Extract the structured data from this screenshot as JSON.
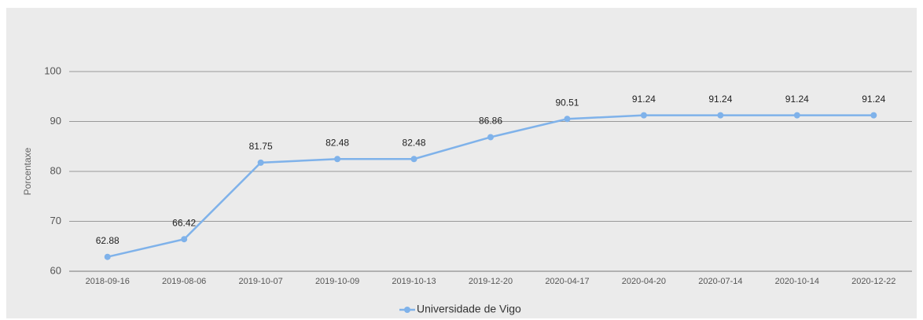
{
  "chart_data": {
    "type": "line",
    "y_label": "Porcentaxe",
    "categories": [
      "2018-09-16",
      "2019-08-06",
      "2019-10-07",
      "2019-10-09",
      "2019-10-13",
      "2019-12-20",
      "2020-04-17",
      "2020-04-20",
      "2020-07-14",
      "2020-10-14",
      "2020-12-22"
    ],
    "series": [
      {
        "name": "Universidade de Vigo",
        "color": "#7fb2ea",
        "values": [
          62.88,
          66.42,
          81.75,
          82.48,
          82.48,
          86.86,
          90.51,
          91.24,
          91.24,
          91.24,
          91.24
        ]
      }
    ],
    "ylim": [
      60,
      100
    ],
    "yticks": [
      60,
      70,
      80,
      90,
      100
    ],
    "grid": true,
    "legend": "bottom"
  }
}
